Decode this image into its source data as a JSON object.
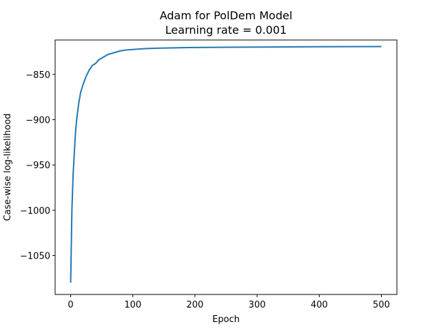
{
  "chart_data": {
    "type": "line",
    "title": "Adam for PolDem Model",
    "subtitle": "Learning rate = 0.001",
    "xlabel": "Epoch",
    "ylabel": "Case-wise log-likelihood",
    "xlim": [
      -25,
      525
    ],
    "ylim": [
      -1093,
      -812
    ],
    "xticks": [
      0,
      100,
      200,
      300,
      400,
      500
    ],
    "yticks": [
      -1050,
      -1000,
      -950,
      -900,
      -850
    ],
    "grid": false,
    "series": [
      {
        "color": "#1f77b4",
        "x": [
          0,
          2,
          4,
          6,
          8,
          10,
          13,
          16,
          20,
          25,
          30,
          35,
          40,
          45,
          50,
          60,
          70,
          80,
          90,
          100,
          120,
          140,
          160,
          180,
          200,
          250,
          300,
          350,
          400,
          450,
          500
        ],
        "y": [
          -1080,
          -1000,
          -960,
          -935,
          -912,
          -898,
          -882,
          -870,
          -861,
          -852,
          -845,
          -840,
          -838,
          -834,
          -832,
          -828,
          -826,
          -824,
          -823,
          -822.5,
          -821.5,
          -821,
          -820.8,
          -820.5,
          -820.3,
          -820,
          -819.8,
          -819.6,
          -819.4,
          -819.3,
          -819.2
        ]
      }
    ]
  }
}
